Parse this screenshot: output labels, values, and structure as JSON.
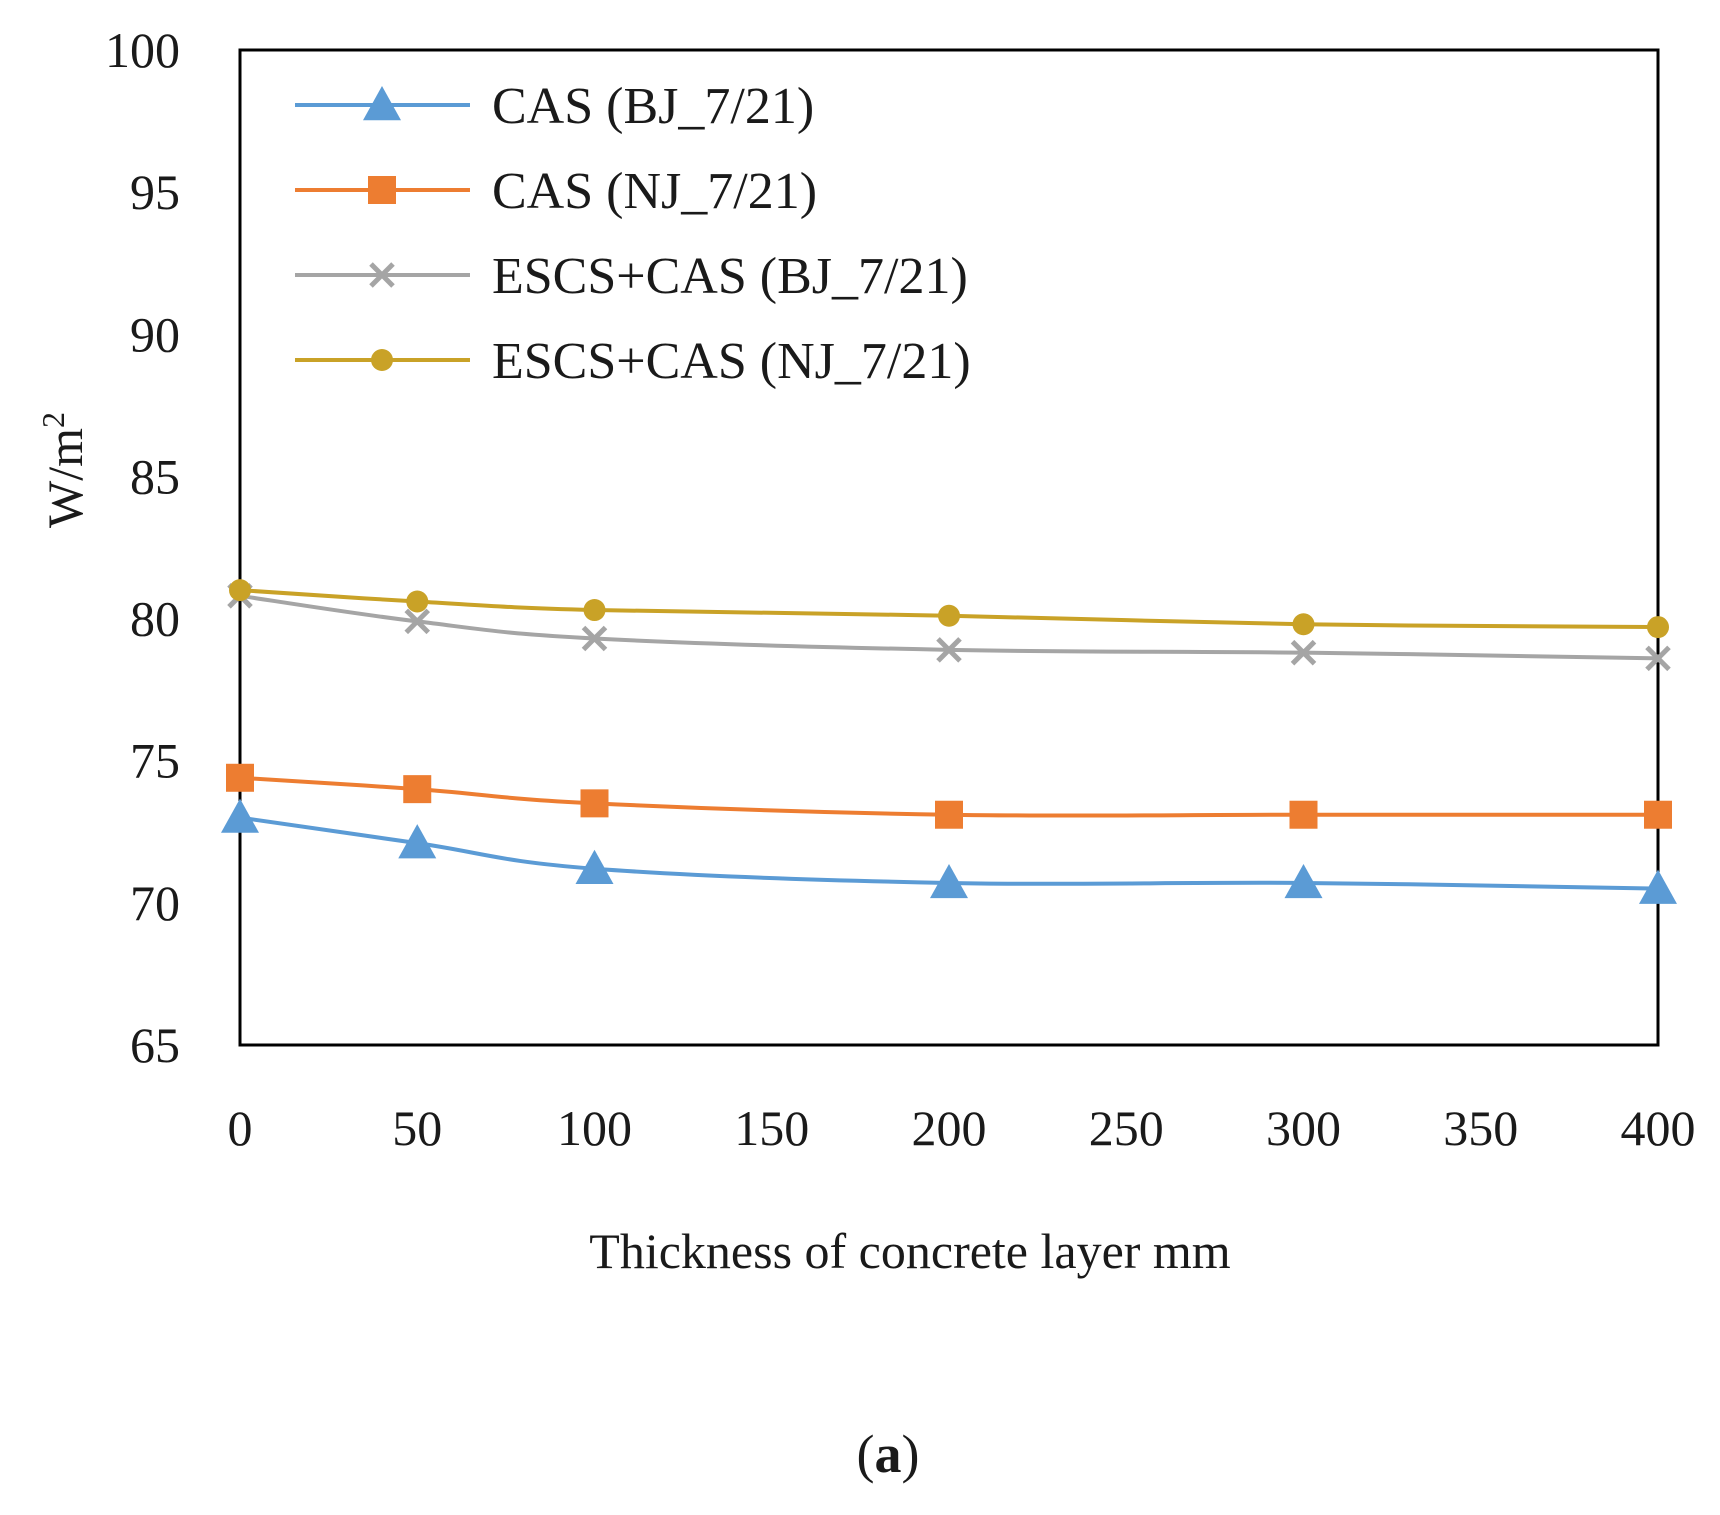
{
  "chart_data": {
    "type": "line",
    "title": "",
    "xlabel": "Thickness of concrete layer mm",
    "ylabel_base": "W/m",
    "ylabel_sup": "2",
    "xlim": [
      0,
      400
    ],
    "ylim": [
      65,
      100
    ],
    "xticks": [
      0,
      50,
      100,
      150,
      200,
      250,
      300,
      350,
      400
    ],
    "yticks": [
      65,
      70,
      75,
      80,
      85,
      90,
      95,
      100
    ],
    "x": [
      0,
      50,
      100,
      200,
      300,
      400
    ],
    "legend_position": "top-left",
    "series": [
      {
        "name": "CAS (BJ_7/21)",
        "color": "#5b9bd5",
        "marker": "triangle",
        "values": [
          73.0,
          72.1,
          71.2,
          70.7,
          70.7,
          70.5
        ]
      },
      {
        "name": "CAS (NJ_7/21)",
        "color": "#ed7d31",
        "marker": "square",
        "values": [
          74.4,
          74.0,
          73.5,
          73.1,
          73.1,
          73.1
        ]
      },
      {
        "name": "ESCS+CAS (BJ_7/21)",
        "color": "#a5a5a5",
        "marker": "x",
        "values": [
          80.8,
          79.9,
          79.3,
          78.9,
          78.8,
          78.6
        ]
      },
      {
        "name": "ESCS+CAS (NJ_7/21)",
        "color": "#c9a227",
        "marker": "circle",
        "values": [
          81.0,
          80.6,
          80.3,
          80.1,
          79.8,
          79.7
        ]
      }
    ]
  },
  "caption": {
    "open": "(",
    "letter": "a",
    "close": ")"
  }
}
